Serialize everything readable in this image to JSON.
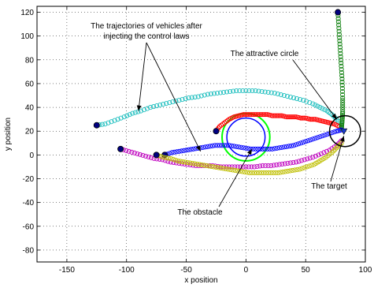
{
  "chart_data": {
    "type": "scatter",
    "title": "",
    "xlabel": "x position",
    "ylabel": "y position",
    "xlim": [
      -175,
      100
    ],
    "ylim": [
      -90,
      125
    ],
    "xticks": [
      -150,
      -100,
      -50,
      0,
      50,
      100
    ],
    "yticks": [
      -80,
      -60,
      -40,
      -20,
      0,
      20,
      40,
      60,
      80,
      100,
      120
    ],
    "grid": true,
    "grid_style": "dotted",
    "legend": "none",
    "colors": {
      "cyan": "#1fbfbf",
      "red": "#ff0000",
      "green": "#108010",
      "blue": "#0000ff",
      "magenta": "#bf00bf",
      "yellow": "#bfbf00",
      "black": "#000000",
      "bright_green": "#00ff00",
      "dark_blue_marker": "#000080"
    },
    "series": [
      {
        "color": "cyan",
        "start": [
          -125,
          25
        ],
        "x": [
          -125,
          -118,
          -110,
          -102,
          -95,
          -88,
          -80,
          -72,
          -64,
          -56,
          -48,
          -40,
          -32,
          -24,
          -16,
          -8,
          0,
          8,
          16,
          24,
          32,
          40,
          48,
          56,
          62,
          68,
          72,
          76,
          80
        ],
        "y": [
          25,
          26,
          29,
          32,
          35,
          37,
          40,
          42,
          44,
          46,
          48,
          49,
          51,
          52,
          53,
          54,
          54,
          54,
          53,
          52,
          50,
          48,
          46,
          43,
          40,
          37,
          34,
          30,
          25
        ]
      },
      {
        "color": "red",
        "start": [
          -25,
          20
        ],
        "x": [
          -25,
          -22,
          -18,
          -14,
          -10,
          -6,
          -2,
          2,
          6,
          10,
          14,
          18,
          22,
          26,
          30,
          34,
          38,
          42,
          46,
          50,
          54,
          58,
          62,
          66,
          70,
          74,
          78
        ],
        "y": [
          20,
          24,
          27,
          30,
          32,
          33,
          34,
          34,
          34,
          34,
          34,
          34,
          33,
          33,
          33,
          32,
          32,
          32,
          31,
          31,
          30,
          30,
          29,
          28,
          27,
          26,
          24
        ]
      },
      {
        "color": "green",
        "start": [
          77,
          120
        ],
        "x": [
          77,
          77.5,
          78,
          78.5,
          79,
          79.5,
          80,
          80.5,
          80.8,
          81,
          81,
          81,
          80.8,
          80.5,
          80.2,
          80
        ],
        "y": [
          120,
          112,
          104,
          96,
          88,
          80,
          72,
          64,
          56,
          48,
          42,
          36,
          32,
          28,
          25,
          22
        ]
      },
      {
        "color": "blue",
        "start": [
          -68,
          0
        ],
        "x": [
          -68,
          -62,
          -56,
          -50,
          -44,
          -38,
          -32,
          -26,
          -20,
          -14,
          -8,
          -2,
          4,
          10,
          16,
          22,
          28,
          34,
          40,
          46,
          52,
          58,
          64,
          70,
          76,
          80
        ],
        "y": [
          0,
          2,
          3,
          4,
          5,
          6,
          7,
          8,
          8,
          8,
          7,
          6,
          5,
          5,
          5,
          5,
          6,
          7,
          8,
          10,
          12,
          14,
          16,
          18,
          20,
          21
        ]
      },
      {
        "color": "magenta",
        "start": [
          -105,
          5
        ],
        "x": [
          -105,
          -98,
          -91,
          -84,
          -77,
          -70,
          -63,
          -56,
          -49,
          -42,
          -35,
          -28,
          -21,
          -14,
          -7,
          0,
          7,
          14,
          21,
          28,
          35,
          42,
          49,
          56,
          63,
          70,
          76,
          80
        ],
        "y": [
          5,
          3,
          1,
          -1,
          -3,
          -4,
          -6,
          -7,
          -8,
          -9,
          -9,
          -9,
          -10,
          -10,
          -10,
          -10,
          -10,
          -9,
          -9,
          -8,
          -7,
          -6,
          -4,
          -2,
          1,
          4,
          8,
          12
        ]
      },
      {
        "color": "yellow",
        "start": [
          -75,
          0
        ],
        "x": [
          -75,
          -69,
          -63,
          -57,
          -51,
          -45,
          -39,
          -33,
          -27,
          -21,
          -15,
          -9,
          -3,
          3,
          9,
          15,
          21,
          27,
          33,
          39,
          45,
          51,
          57,
          62,
          67,
          72,
          76,
          80
        ],
        "y": [
          0,
          -2,
          -3,
          -5,
          -6,
          -7,
          -8,
          -9,
          -10,
          -11,
          -12,
          -13,
          -14,
          -15,
          -15,
          -15,
          -15,
          -15,
          -14,
          -13,
          -12,
          -10,
          -8,
          -5,
          -2,
          2,
          6,
          10
        ]
      }
    ],
    "obstacle": {
      "center": [
        0,
        15
      ],
      "radius": 16,
      "color": "blue"
    },
    "safety_circle": {
      "center": [
        0,
        15
      ],
      "radius": 20,
      "color": "bright_green"
    },
    "attractive_circle": {
      "center": [
        83,
        20
      ],
      "radius": 13,
      "color": "black"
    },
    "target": {
      "x": 82,
      "y": 20,
      "marker": "triangle-down"
    },
    "annotations": [
      {
        "text_lines": [
          "The trajectories of vehicles after",
          "injecting the control laws"
        ],
        "arrows_to": [
          [
            -90,
            37
          ],
          [
            -38,
            3
          ]
        ]
      },
      {
        "text_lines": [
          "The attractive circle"
        ],
        "arrows_to": [
          [
            76,
            30
          ]
        ]
      },
      {
        "text_lines": [
          "The target"
        ],
        "arrows_to": [
          [
            82,
            16
          ]
        ]
      },
      {
        "text_lines": [
          "The obstacle"
        ],
        "arrows_to": [
          [
            5,
            5
          ]
        ]
      }
    ]
  }
}
